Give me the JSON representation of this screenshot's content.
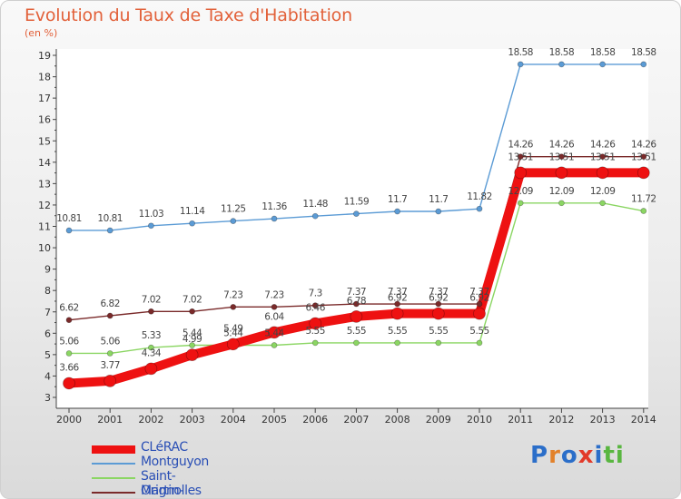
{
  "header": {
    "title": "Evolution du Taux de Taxe d'Habitation",
    "unit": "(en %)"
  },
  "brand": {
    "logo_text": "Proxiti"
  },
  "chart_data": {
    "type": "line",
    "title": "Evolution du Taux de Taxe d'Habitation",
    "xlabel": "",
    "ylabel": "(en %)",
    "ylim": [
      3,
      19
    ],
    "yticks": [
      3,
      4,
      5,
      6,
      7,
      8,
      9,
      10,
      11,
      12,
      13,
      14,
      15,
      16,
      17,
      18,
      19
    ],
    "grid": false,
    "legend_position": "bottom-left",
    "categories": [
      "2000",
      "2001",
      "2002",
      "2003",
      "2004",
      "2005",
      "2006",
      "2007",
      "2008",
      "2009",
      "2010",
      "2011",
      "2012",
      "2013",
      "2014"
    ],
    "series": [
      {
        "name": "Montguyon",
        "color": "#5b9bd5",
        "values": [
          10.81,
          10.81,
          11.03,
          11.14,
          11.25,
          11.36,
          11.48,
          11.59,
          11.7,
          11.7,
          11.82,
          18.58,
          18.58,
          18.58,
          18.58
        ],
        "labels": [
          "10.81",
          "10.81",
          "11.03",
          "11.14",
          "11.25",
          "11.36",
          "11.48",
          "11.59",
          "11.7",
          "11.7",
          "11.82",
          "18.58",
          "18.58",
          "18.58",
          "18.58"
        ]
      },
      {
        "name": "Orignolles",
        "color": "#7a2a2a",
        "values": [
          6.62,
          6.82,
          7.02,
          7.02,
          7.23,
          7.23,
          7.3,
          7.37,
          7.37,
          7.37,
          7.37,
          14.26,
          14.26,
          14.26,
          14.26
        ],
        "labels": [
          "6.62",
          "6.82",
          "7.02",
          "7.02",
          "7.23",
          "7.23",
          "7.3",
          "7.37",
          "7.37",
          "7.37",
          "7.37",
          "14.26",
          "14.26",
          "14.26",
          "14.26"
        ]
      },
      {
        "name": "Saint-Martin-d'Ary",
        "color": "#8bd663",
        "values": [
          5.06,
          5.06,
          5.33,
          5.44,
          5.44,
          5.44,
          5.55,
          5.55,
          5.55,
          5.55,
          5.55,
          12.09,
          12.09,
          12.09,
          11.72
        ],
        "labels": [
          "5.06",
          "5.06",
          "5.33",
          "5.44",
          "5.44",
          "5.44",
          "5.55",
          "5.55",
          "5.55",
          "5.55",
          "5.55",
          "12.09",
          "12.09",
          "12.09",
          "11.72"
        ]
      },
      {
        "name": "CLéRAC",
        "color": "#ee1111",
        "values": [
          3.66,
          3.77,
          4.34,
          4.99,
          5.49,
          6.04,
          6.46,
          6.78,
          6.92,
          6.92,
          6.92,
          13.51,
          13.51,
          13.51,
          13.51
        ],
        "labels": [
          "3.66",
          "3.77",
          "4.34",
          "4.99",
          "5.49",
          "6.04",
          "6.46",
          "6.78",
          "6.92",
          "6.92",
          "6.92",
          "13.51",
          "13.51",
          "13.51",
          "13.51"
        ]
      }
    ],
    "legend_order": [
      "CLéRAC",
      "Montguyon",
      "Saint-Martin-d'Ary",
      "Orignolles"
    ]
  }
}
